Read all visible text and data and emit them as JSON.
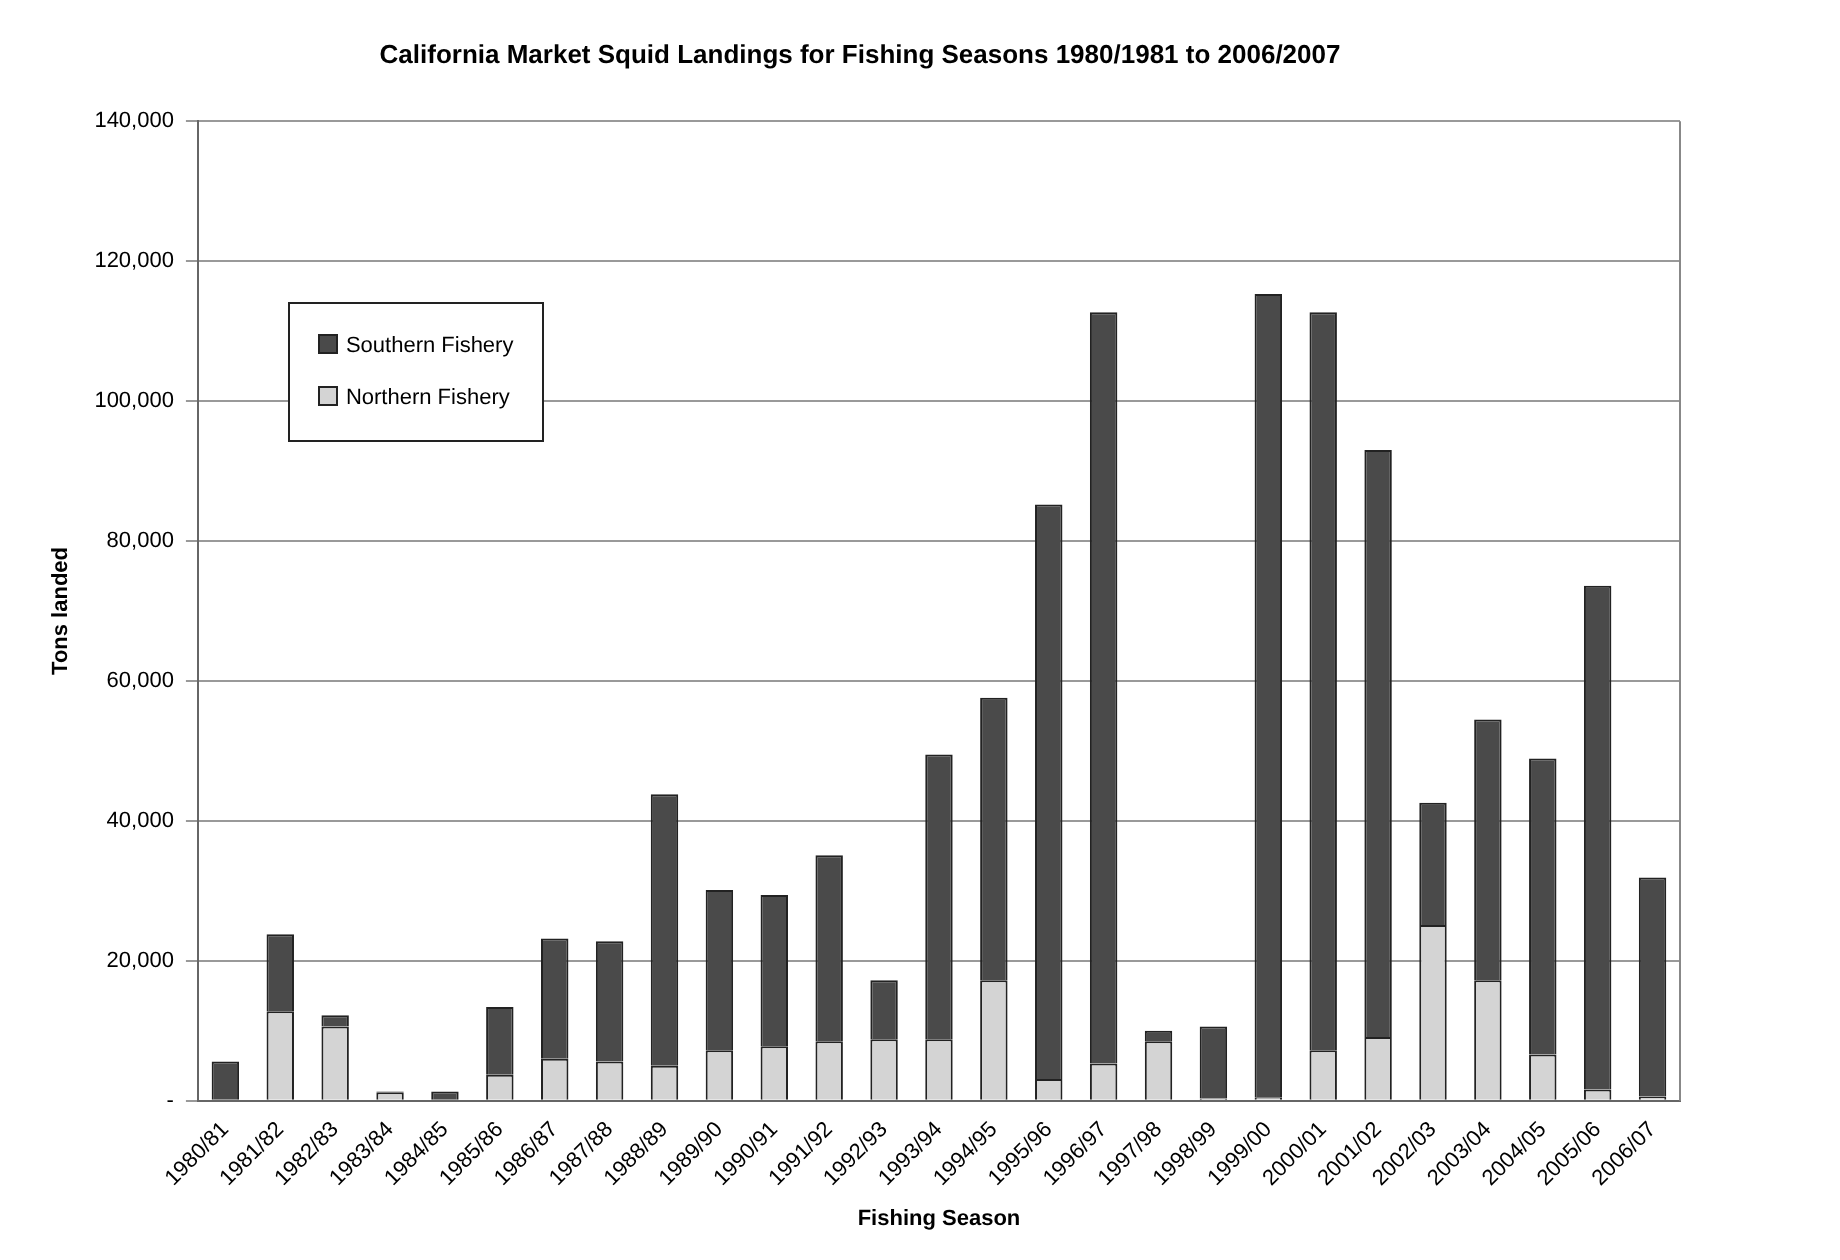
{
  "chart_data": {
    "type": "bar",
    "title": "California Market Squid Landings for Fishing Seasons 1980/1981 to 2006/2007",
    "xlabel": "Fishing Season",
    "ylabel": "Tons landed",
    "categories": [
      "1980/81",
      "1981/82",
      "1982/83",
      "1983/84",
      "1984/85",
      "1985/86",
      "1986/87",
      "1987/88",
      "1988/89",
      "1989/90",
      "1990/91",
      "1991/92",
      "1992/93",
      "1993/94",
      "1994/95",
      "1995/96",
      "1996/97",
      "1997/98",
      "1998/99",
      "1999/00",
      "2000/01",
      "2001/02",
      "2002/03",
      "2003/04",
      "2004/05",
      "2005/06",
      "2006/07"
    ],
    "stacked": true,
    "series": [
      {
        "name": "Northern Fishery",
        "color": "#d4d4d4",
        "values": [
          0,
          12800,
          10600,
          1200,
          null,
          3700,
          6000,
          5600,
          5000,
          7200,
          7800,
          8500,
          8800,
          8800,
          17200,
          3100,
          5300,
          8500,
          300,
          500,
          7200,
          9100,
          25100,
          17200,
          6600,
          1600,
          600
        ]
      },
      {
        "name": "Southern Fishery",
        "color": "#4a4a4a",
        "values": [
          5600,
          11000,
          1600,
          100,
          1300,
          9700,
          17200,
          17200,
          38800,
          22900,
          21600,
          26600,
          8400,
          40700,
          40400,
          82100,
          107400,
          1500,
          10300,
          114800,
          105500,
          83900,
          17500,
          37300,
          42300,
          72000,
          31300
        ]
      }
    ],
    "ylim": [
      0,
      140000
    ],
    "yticks": [
      {
        "value": 0,
        "label": "-"
      },
      {
        "value": 20000,
        "label": "20,000"
      },
      {
        "value": 40000,
        "label": "40,000"
      },
      {
        "value": 60000,
        "label": "60,000"
      },
      {
        "value": 80000,
        "label": "80,000"
      },
      {
        "value": 100000,
        "label": "100,000"
      },
      {
        "value": 120000,
        "label": "120,000"
      },
      {
        "value": 140000,
        "label": "140,000"
      }
    ],
    "grid": "y",
    "legend": "top left"
  }
}
